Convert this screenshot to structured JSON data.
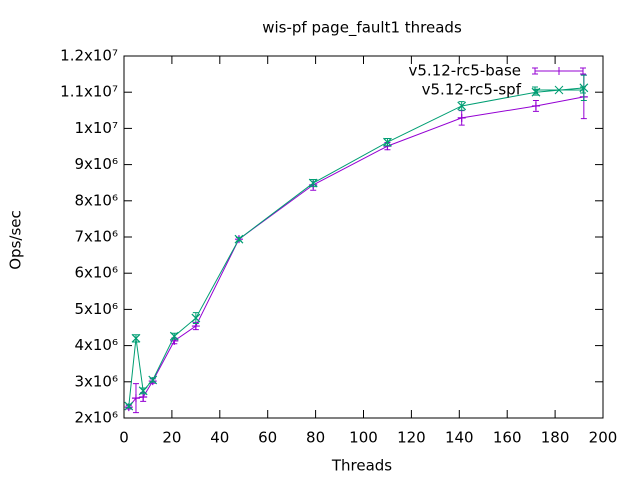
{
  "chart_data": {
    "type": "line",
    "title": "wis-pf page_fault1 threads",
    "x_label": "Threads",
    "y_label": "Ops/sec",
    "x": [
      2,
      5,
      8,
      12,
      21,
      30,
      48,
      79,
      110,
      141,
      172,
      192
    ],
    "series": [
      {
        "name": "v5.12-rc5-base",
        "color": "#9400d3",
        "marker": "plus",
        "values": [
          2300000,
          2550000,
          2580000,
          3020000,
          4130000,
          4540000,
          6940000,
          8440000,
          9510000,
          10290000,
          10620000,
          10870000
        ],
        "errors": [
          50000,
          400000,
          120000,
          60000,
          80000,
          100000,
          50000,
          150000,
          100000,
          200000,
          150000,
          600000
        ]
      },
      {
        "name": "v5.12-rc5-spf",
        "color": "#009e73",
        "marker": "cross",
        "values": [
          2330000,
          4200000,
          2750000,
          3050000,
          4260000,
          4760000,
          6940000,
          8490000,
          9620000,
          10620000,
          11000000,
          11120000
        ],
        "errors": [
          50000,
          100000,
          80000,
          60000,
          80000,
          150000,
          50000,
          100000,
          100000,
          120000,
          80000,
          350000
        ]
      }
    ],
    "xlim": [
      0,
      200
    ],
    "xticks": [
      0,
      20,
      40,
      60,
      80,
      100,
      120,
      140,
      160,
      180,
      200
    ],
    "ylim": [
      2000000,
      12000000
    ],
    "yticks": [
      {
        "value": 2000000,
        "label": "2x10⁶"
      },
      {
        "value": 3000000,
        "label": "3x10⁶"
      },
      {
        "value": 4000000,
        "label": "4x10⁶"
      },
      {
        "value": 5000000,
        "label": "5x10⁶"
      },
      {
        "value": 6000000,
        "label": "6x10⁶"
      },
      {
        "value": 7000000,
        "label": "7x10⁶"
      },
      {
        "value": 8000000,
        "label": "8x10⁶"
      },
      {
        "value": 9000000,
        "label": "9x10⁶"
      },
      {
        "value": 10000000,
        "label": "1x10⁷"
      },
      {
        "value": 11000000,
        "label": "1.1x10⁷"
      },
      {
        "value": 12000000,
        "label": "1.2x10⁷"
      }
    ],
    "legend": "top-right",
    "grid": false
  }
}
